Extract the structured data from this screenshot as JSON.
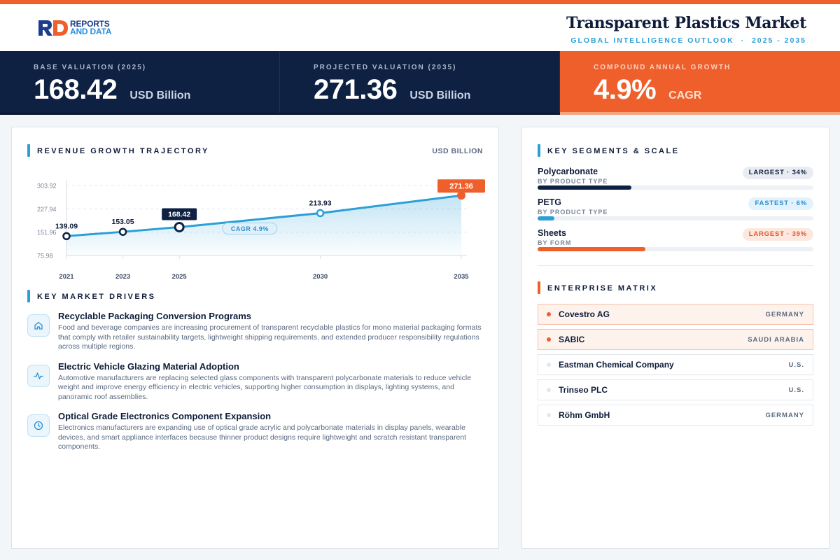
{
  "header": {
    "logo": {
      "line1": "REPORTS",
      "line2": "AND DATA"
    },
    "title": "Transparent Plastics Market",
    "subtitle": "GLOBAL INTELLIGENCE OUTLOOK  ·  2025 - 2035"
  },
  "kpis": [
    {
      "label": "BASE VALUATION (2025)",
      "value": "168.42",
      "unit": "USD Billion"
    },
    {
      "label": "PROJECTED VALUATION (2035)",
      "value": "271.36",
      "unit": "USD Billion"
    },
    {
      "label": "COMPOUND ANNUAL GROWTH",
      "value": "4.9%",
      "unit": "CAGR"
    }
  ],
  "trajectory": {
    "section_title": "REVENUE GROWTH TRAJECTORY",
    "unit_label": "USD BILLION"
  },
  "chart_data": {
    "type": "line",
    "title": "REVENUE GROWTH TRAJECTORY",
    "ylabel": "USD BILLION",
    "x": [
      "2021",
      "2023",
      "2025",
      "2030",
      "2035"
    ],
    "values": [
      139.09,
      153.05,
      168.42,
      213.93,
      271.36
    ],
    "data_labels": [
      "139.09",
      "153.05",
      "168.42",
      "213.93",
      "271.36"
    ],
    "y_ticks": [
      "303.92",
      "227.94",
      "151.96",
      "75.98"
    ],
    "ylim": [
      75.98,
      303.92
    ],
    "grid": true,
    "annotation": "CAGR 4.9%",
    "highlight_index": 2,
    "end_index": 4,
    "colors": {
      "line": "#2a9fd8",
      "fill": "#2a9fd8",
      "highlight": "#0f2142",
      "end": "#ef5f2c"
    }
  },
  "drivers": {
    "section_title": "KEY MARKET DRIVERS",
    "items": [
      {
        "icon": "home-icon",
        "title": "Recyclable Packaging Conversion Programs",
        "desc": "Food and beverage companies are increasing procurement of transparent recyclable plastics for mono material packaging formats that comply with retailer sustainability targets, lightweight shipping requirements, and extended producer responsibility regulations across multiple regions."
      },
      {
        "icon": "activity-icon",
        "title": "Electric Vehicle Glazing Material Adoption",
        "desc": "Automotive manufacturers are replacing selected glass components with transparent polycarbonate materials to reduce vehicle weight and improve energy efficiency in electric vehicles, supporting higher consumption in displays, lighting systems, and panoramic roof assemblies."
      },
      {
        "icon": "clock-icon",
        "title": "Optical Grade Electronics Component Expansion",
        "desc": "Electronics manufacturers are expanding use of optical grade acrylic and polycarbonate materials in display panels, wearable devices, and smart appliance interfaces because thinner product designs require lightweight and scratch resistant transparent components."
      }
    ]
  },
  "segments": {
    "section_title": "KEY SEGMENTS & SCALE",
    "items": [
      {
        "name": "Polycarbonate",
        "category": "BY PRODUCT TYPE",
        "badge": "LARGEST · 34%",
        "share": 0.34,
        "style": "navy",
        "color": "#0f2142"
      },
      {
        "name": "PETG",
        "category": "BY PRODUCT TYPE",
        "badge": "FASTEST · 6%",
        "share": 0.06,
        "style": "blue",
        "color": "#2a9fd8"
      },
      {
        "name": "Sheets",
        "category": "BY FORM",
        "badge": "LARGEST · 39%",
        "share": 0.39,
        "style": "org",
        "color": "#ef5f2c"
      }
    ]
  },
  "enterprise": {
    "section_title": "ENTERPRISE MATRIX",
    "items": [
      {
        "name": "Covestro AG",
        "country": "GERMANY",
        "highlight": true
      },
      {
        "name": "SABIC",
        "country": "SAUDI ARABIA",
        "highlight": true
      },
      {
        "name": "Eastman Chemical Company",
        "country": "U.S.",
        "highlight": false
      },
      {
        "name": "Trinseo PLC",
        "country": "U.S.",
        "highlight": false
      },
      {
        "name": "Röhm GmbH",
        "country": "GERMANY",
        "highlight": false
      }
    ]
  }
}
